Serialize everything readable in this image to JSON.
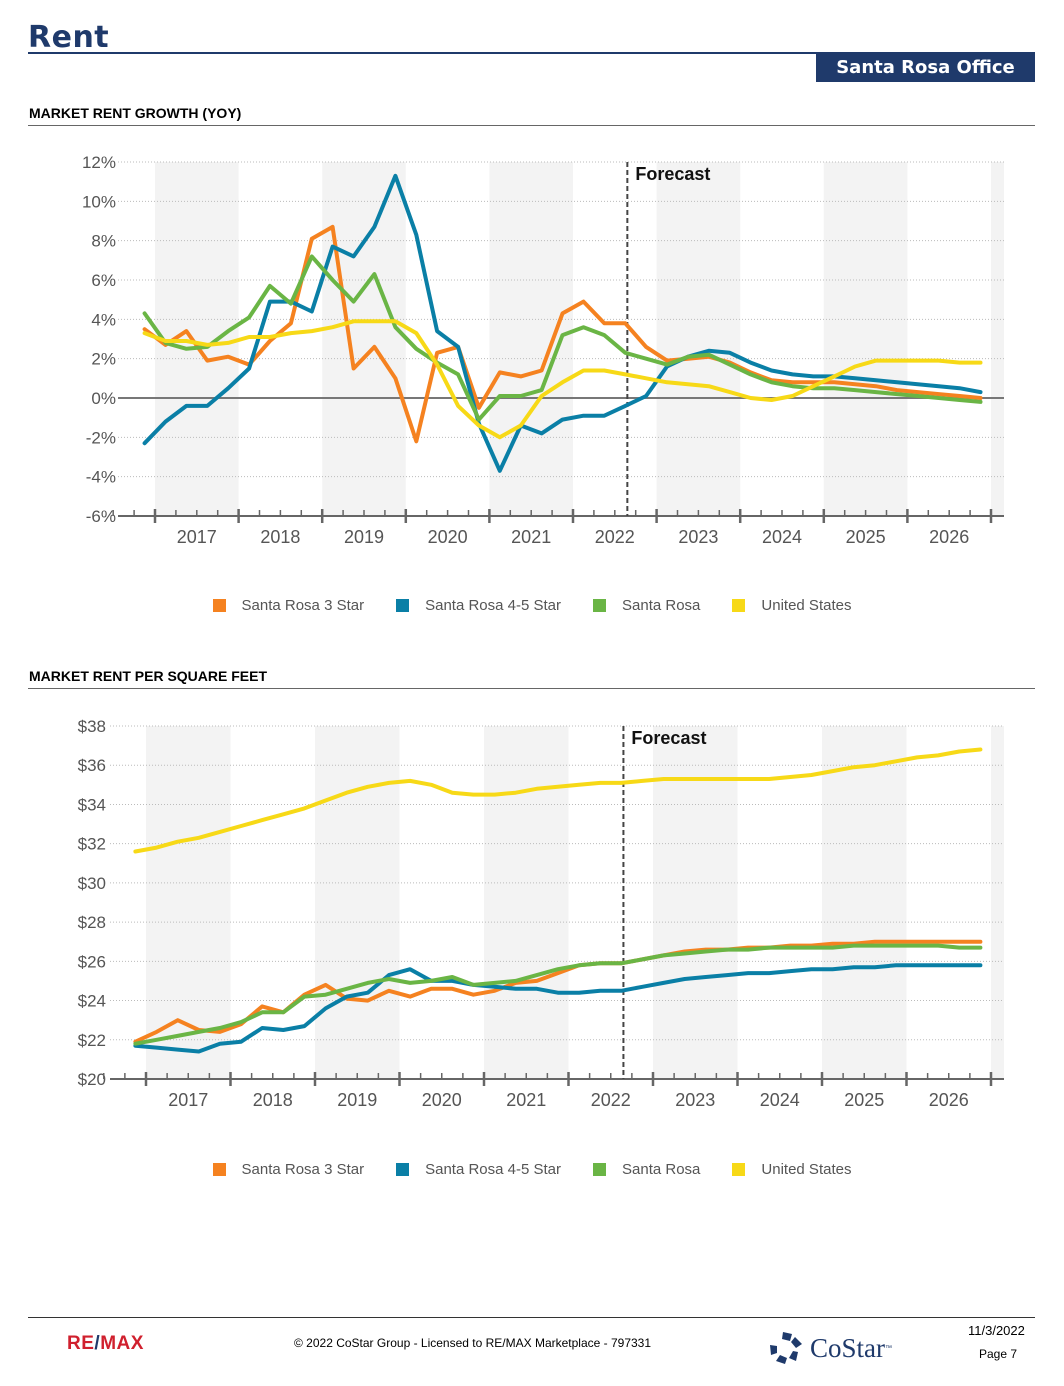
{
  "header": {
    "title": "Rent",
    "badge": "Santa Rosa Office"
  },
  "sections": [
    {
      "title": "MARKET RENT GROWTH (YOY)"
    },
    {
      "title": "MARKET RENT PER SQUARE FEET"
    }
  ],
  "legend": [
    {
      "label": "Santa Rosa 3 Star",
      "color": "#f58220"
    },
    {
      "label": "Santa Rosa 4-5 Star",
      "color": "#0a7fa6"
    },
    {
      "label": "Santa Rosa",
      "color": "#6ab545"
    },
    {
      "label": "United States",
      "color": "#f7d917"
    }
  ],
  "chart_data": [
    {
      "type": "line",
      "title": "MARKET RENT GROWTH (YOY)",
      "xlabel": "",
      "ylabel": "",
      "x_tick_labels": [
        "2017",
        "2018",
        "2019",
        "2020",
        "2021",
        "2022",
        "2023",
        "2024",
        "2025",
        "2026"
      ],
      "y_tick_labels": [
        "12%",
        "10%",
        "8%",
        "6%",
        "4%",
        "2%",
        "0%",
        "-2%",
        "-4%",
        "-6%"
      ],
      "ylim": [
        -6,
        12
      ],
      "y_ticks": [
        12,
        10,
        8,
        6,
        4,
        2,
        0,
        -2,
        -4,
        -6
      ],
      "x_range": [
        "2016 Q4",
        "2026 Q4"
      ],
      "periods_per_year": 4,
      "forecast_label": "Forecast",
      "forecast_start": "2022 Q3",
      "grid": true,
      "legend_position": "bottom",
      "series": [
        {
          "name": "Santa Rosa 3 Star",
          "color": "#f58220",
          "values": [
            3.5,
            2.7,
            3.4,
            1.9,
            2.1,
            1.7,
            2.9,
            3.8,
            8.1,
            8.7,
            1.5,
            2.6,
            1.0,
            -2.2,
            2.3,
            2.6,
            -0.5,
            1.3,
            1.1,
            1.4,
            4.3,
            4.9,
            3.8,
            3.8,
            2.6,
            1.9,
            2.0,
            2.1,
            1.8,
            1.3,
            0.9,
            0.8,
            0.8,
            0.8,
            0.7,
            0.6,
            0.4,
            0.3,
            0.2,
            0.1,
            0.0
          ]
        },
        {
          "name": "Santa Rosa 4-5 Star",
          "color": "#0a7fa6",
          "values": [
            -2.3,
            -1.2,
            -0.4,
            -0.4,
            0.5,
            1.5,
            4.9,
            4.9,
            4.4,
            7.7,
            7.2,
            8.7,
            11.3,
            8.3,
            3.4,
            2.6,
            -1.3,
            -3.7,
            -1.4,
            -1.8,
            -1.1,
            -0.9,
            -0.9,
            -0.4,
            0.1,
            1.6,
            2.1,
            2.4,
            2.3,
            1.8,
            1.4,
            1.2,
            1.1,
            1.1,
            1.0,
            0.9,
            0.8,
            0.7,
            0.6,
            0.5,
            0.3
          ]
        },
        {
          "name": "Santa Rosa",
          "color": "#6ab545",
          "values": [
            4.3,
            2.8,
            2.5,
            2.6,
            3.4,
            4.1,
            5.7,
            4.8,
            7.2,
            6.0,
            4.9,
            6.3,
            3.6,
            2.5,
            1.8,
            1.2,
            -1.1,
            0.1,
            0.1,
            0.4,
            3.2,
            3.6,
            3.2,
            2.3,
            2.0,
            1.7,
            2.1,
            2.2,
            1.7,
            1.2,
            0.8,
            0.6,
            0.5,
            0.5,
            0.4,
            0.3,
            0.2,
            0.1,
            0.0,
            -0.1,
            -0.2
          ]
        },
        {
          "name": "United States",
          "color": "#f7d917",
          "values": [
            3.3,
            2.9,
            2.9,
            2.7,
            2.8,
            3.1,
            3.1,
            3.3,
            3.4,
            3.6,
            3.9,
            3.9,
            3.9,
            3.3,
            1.7,
            -0.4,
            -1.4,
            -2.0,
            -1.4,
            0.1,
            0.8,
            1.4,
            1.4,
            1.2,
            1.0,
            0.8,
            0.7,
            0.6,
            0.3,
            0.0,
            -0.1,
            0.1,
            0.6,
            1.1,
            1.6,
            1.9,
            1.9,
            1.9,
            1.9,
            1.8,
            1.8
          ]
        }
      ]
    },
    {
      "type": "line",
      "title": "MARKET RENT PER SQUARE FEET",
      "xlabel": "",
      "ylabel": "",
      "x_tick_labels": [
        "2017",
        "2018",
        "2019",
        "2020",
        "2021",
        "2022",
        "2023",
        "2024",
        "2025",
        "2026"
      ],
      "y_tick_labels": [
        "$38",
        "$36",
        "$34",
        "$32",
        "$30",
        "$28",
        "$26",
        "$24",
        "$22",
        "$20"
      ],
      "ylim": [
        20,
        38
      ],
      "y_ticks": [
        38,
        36,
        34,
        32,
        30,
        28,
        26,
        24,
        22,
        20
      ],
      "x_range": [
        "2016 Q4",
        "2026 Q4"
      ],
      "periods_per_year": 4,
      "forecast_label": "Forecast",
      "forecast_start": "2022 Q3",
      "grid": true,
      "legend_position": "bottom",
      "series": [
        {
          "name": "Santa Rosa 3 Star",
          "color": "#f58220",
          "values": [
            21.9,
            22.4,
            23.0,
            22.5,
            22.4,
            22.8,
            23.7,
            23.4,
            24.3,
            24.8,
            24.1,
            24.0,
            24.5,
            24.2,
            24.6,
            24.6,
            24.3,
            24.5,
            24.9,
            25.0,
            25.4,
            25.8,
            25.9,
            25.9,
            26.1,
            26.3,
            26.5,
            26.6,
            26.6,
            26.7,
            26.7,
            26.8,
            26.8,
            26.9,
            26.9,
            27.0,
            27.0,
            27.0,
            27.0,
            27.0,
            27.0
          ]
        },
        {
          "name": "Santa Rosa 4-5 Star",
          "color": "#0a7fa6",
          "values": [
            21.7,
            21.6,
            21.5,
            21.4,
            21.8,
            21.9,
            22.6,
            22.5,
            22.7,
            23.6,
            24.2,
            24.4,
            25.3,
            25.6,
            25.0,
            25.0,
            24.8,
            24.7,
            24.6,
            24.6,
            24.4,
            24.4,
            24.5,
            24.5,
            24.7,
            24.9,
            25.1,
            25.2,
            25.3,
            25.4,
            25.4,
            25.5,
            25.6,
            25.6,
            25.7,
            25.7,
            25.8,
            25.8,
            25.8,
            25.8,
            25.8
          ]
        },
        {
          "name": "Santa Rosa",
          "color": "#6ab545",
          "values": [
            21.8,
            22.0,
            22.2,
            22.4,
            22.6,
            22.9,
            23.4,
            23.4,
            24.2,
            24.3,
            24.6,
            24.9,
            25.1,
            24.9,
            25.0,
            25.2,
            24.8,
            24.9,
            25.0,
            25.3,
            25.6,
            25.8,
            25.9,
            25.9,
            26.1,
            26.3,
            26.4,
            26.5,
            26.6,
            26.6,
            26.7,
            26.7,
            26.7,
            26.7,
            26.8,
            26.8,
            26.8,
            26.8,
            26.8,
            26.7,
            26.7
          ]
        },
        {
          "name": "United States",
          "color": "#f7d917",
          "values": [
            31.6,
            31.8,
            32.1,
            32.3,
            32.6,
            32.9,
            33.2,
            33.5,
            33.8,
            34.2,
            34.6,
            34.9,
            35.1,
            35.2,
            35.0,
            34.6,
            34.5,
            34.5,
            34.6,
            34.8,
            34.9,
            35.0,
            35.1,
            35.1,
            35.2,
            35.3,
            35.3,
            35.3,
            35.3,
            35.3,
            35.3,
            35.4,
            35.5,
            35.7,
            35.9,
            36.0,
            36.2,
            36.4,
            36.5,
            36.7,
            36.8
          ]
        }
      ]
    }
  ],
  "footer": {
    "remax_logo_left": "RE",
    "remax_logo_slash": "/",
    "remax_logo_right": "MAX",
    "copyright": "© 2022 CoStar Group - Licensed to RE/MAX Marketplace - 797331",
    "costar_logo": "CoStar",
    "costar_tm": "™",
    "date": "11/3/2022",
    "page": "Page 7"
  }
}
